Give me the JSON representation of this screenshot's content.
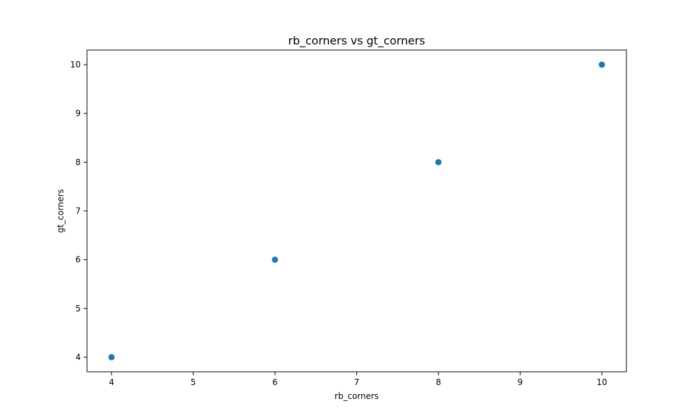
{
  "chart_data": {
    "type": "scatter",
    "title": "rb_corners vs gt_corners",
    "xlabel": "rb_corners",
    "ylabel": "gt_corners",
    "xlim": [
      3.7,
      10.3
    ],
    "ylim": [
      3.7,
      10.3
    ],
    "x_ticks": [
      4,
      5,
      6,
      7,
      8,
      9,
      10
    ],
    "y_ticks": [
      4,
      5,
      6,
      7,
      8,
      9,
      10
    ],
    "grid": false,
    "marker_color": "#1f77b4",
    "points": [
      {
        "x": 4,
        "y": 4
      },
      {
        "x": 6,
        "y": 6
      },
      {
        "x": 8,
        "y": 8
      },
      {
        "x": 10,
        "y": 10
      }
    ]
  }
}
